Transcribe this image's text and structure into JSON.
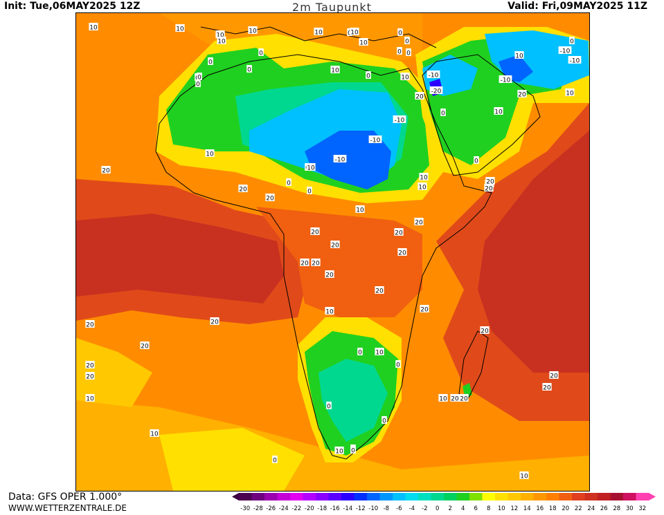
{
  "header": {
    "init": "Init: Tue,06MAY2025 12Z",
    "title": "2m Taupunkt",
    "valid": "Valid: Fri,09MAY2025 11Z"
  },
  "footer": {
    "data": "Data: GFS OPER 1.000°",
    "site": "WWW.WETTERZENTRALE.DE"
  },
  "legend": {
    "ticks": [
      "-30",
      "-28",
      "-26",
      "-24",
      "-22",
      "-20",
      "-18",
      "-16",
      "-14",
      "-12",
      "-10",
      "-8",
      "-6",
      "-4",
      "-2",
      "0",
      "2",
      "4",
      "6",
      "8",
      "10",
      "12",
      "14",
      "16",
      "18",
      "20",
      "22",
      "24",
      "26",
      "28",
      "30",
      "32"
    ],
    "colors": [
      "#4b0050",
      "#6e007f",
      "#9a00ad",
      "#c400d6",
      "#e200f0",
      "#b400ff",
      "#8a00ff",
      "#5a00ff",
      "#2a00ff",
      "#0030ff",
      "#0064ff",
      "#0096ff",
      "#00c0ff",
      "#00dcf0",
      "#00e0c0",
      "#00d890",
      "#00d060",
      "#20d020",
      "#80e000",
      "#ffff00",
      "#ffe000",
      "#ffc800",
      "#ffb000",
      "#ff9800",
      "#ff8000",
      "#f06010",
      "#e04020",
      "#d03020",
      "#c02020",
      "#a81030",
      "#d01060",
      "#ff40b0"
    ]
  },
  "contour_labels": [
    {
      "text": "10"
    },
    {
      "text": "10"
    },
    {
      "text": "10"
    },
    {
      "text": "10"
    },
    {
      "text": "10"
    },
    {
      "text": "0"
    },
    {
      "text": "0"
    },
    {
      "text": "10"
    },
    {
      "text": "10"
    },
    {
      "text": "0"
    },
    {
      "text": "0"
    },
    {
      "text": "10"
    },
    {
      "text": "10"
    },
    {
      "text": "0"
    },
    {
      "text": "0"
    },
    {
      "text": "0"
    },
    {
      "text": "0"
    },
    {
      "text": "0"
    },
    {
      "text": "10"
    },
    {
      "text": "-10"
    },
    {
      "text": "-10"
    },
    {
      "text": "0"
    },
    {
      "text": "10"
    },
    {
      "text": "0"
    },
    {
      "text": "-10"
    },
    {
      "text": "-20"
    },
    {
      "text": "20"
    },
    {
      "text": "20"
    },
    {
      "text": "-10"
    },
    {
      "text": "10"
    },
    {
      "text": "0"
    },
    {
      "text": "0"
    },
    {
      "text": "10"
    },
    {
      "text": "-10"
    },
    {
      "text": "0"
    },
    {
      "text": "-10"
    },
    {
      "text": "10"
    },
    {
      "text": "-10"
    },
    {
      "text": "0"
    },
    {
      "text": "0"
    },
    {
      "text": "10"
    },
    {
      "text": "20"
    },
    {
      "text": "0"
    },
    {
      "text": "0"
    },
    {
      "text": "10"
    },
    {
      "text": "10"
    },
    {
      "text": "20"
    },
    {
      "text": "20"
    },
    {
      "text": "20"
    },
    {
      "text": "10"
    },
    {
      "text": "20"
    },
    {
      "text": "20"
    },
    {
      "text": "20"
    },
    {
      "text": "20"
    },
    {
      "text": "20"
    },
    {
      "text": "20"
    },
    {
      "text": "20"
    },
    {
      "text": "20"
    },
    {
      "text": "20"
    },
    {
      "text": "20"
    },
    {
      "text": "20"
    },
    {
      "text": "10"
    },
    {
      "text": "20"
    },
    {
      "text": "20"
    },
    {
      "text": "20"
    },
    {
      "text": "20"
    },
    {
      "text": "20"
    },
    {
      "text": "20"
    },
    {
      "text": "0"
    },
    {
      "text": "10"
    },
    {
      "text": "0"
    },
    {
      "text": "0"
    },
    {
      "text": "0"
    },
    {
      "text": "0"
    },
    {
      "text": "20"
    },
    {
      "text": "20"
    },
    {
      "text": "20"
    },
    {
      "text": "10"
    },
    {
      "text": "20"
    },
    {
      "text": "20"
    },
    {
      "text": "10"
    },
    {
      "text": "10"
    },
    {
      "text": "0"
    },
    {
      "text": "10"
    },
    {
      "text": "0"
    },
    {
      "text": "10"
    }
  ]
}
